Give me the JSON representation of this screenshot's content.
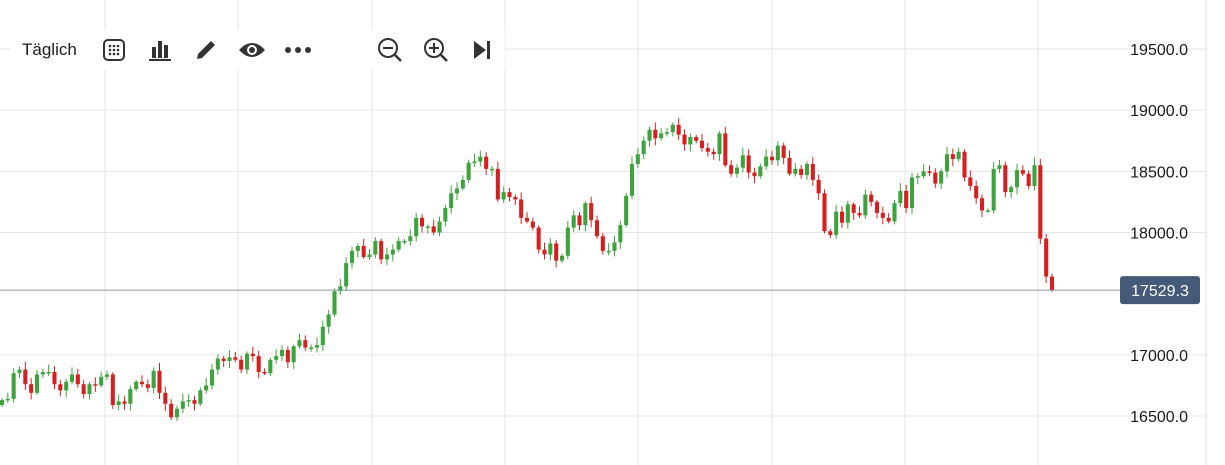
{
  "toolbar": {
    "timeframe_label": "Täglich",
    "buttons": [
      "calendar-icon",
      "bar-chart-icon",
      "pencil-icon",
      "eye-icon",
      "more-icon",
      "zoom-out-icon",
      "zoom-in-icon",
      "skip-to-end-icon"
    ]
  },
  "colors": {
    "up": "#3ea33e",
    "down": "#d42020",
    "grid": "#e6e6e6",
    "price_line": "#8a94a6",
    "price_tag": "#445a78"
  },
  "chart_data": {
    "type": "candlestick",
    "y_ticks": [
      "19500.0",
      "19000.0",
      "18500.0",
      "18000.0",
      "17000.0",
      "16500.0"
    ],
    "ylim": [
      16100,
      19900
    ],
    "grid": true,
    "last_price": 17529.3,
    "last_price_label": "17529.3",
    "closes": [
      16630,
      16640,
      16850,
      16880,
      16760,
      16690,
      16840,
      16860,
      16860,
      16760,
      16710,
      16780,
      16840,
      16760,
      16680,
      16760,
      16750,
      16820,
      16840,
      16590,
      16620,
      16600,
      16720,
      16780,
      16760,
      16730,
      16870,
      16690,
      16600,
      16490,
      16560,
      16620,
      16630,
      16600,
      16710,
      16750,
      16880,
      16970,
      16950,
      16980,
      16960,
      16880,
      17010,
      16990,
      16860,
      16850,
      16960,
      16990,
      17040,
      16940,
      17070,
      17120,
      17060,
      17060,
      17080,
      17230,
      17330,
      17520,
      17560,
      17750,
      17850,
      17890,
      17800,
      17820,
      17930,
      17780,
      17820,
      17860,
      17930,
      17930,
      17970,
      18120,
      18050,
      18050,
      18000,
      18090,
      18200,
      18320,
      18360,
      18430,
      18570,
      18580,
      18620,
      18520,
      18520,
      18270,
      18330,
      18290,
      18270,
      18120,
      18090,
      18040,
      17860,
      17820,
      17910,
      17770,
      17810,
      18040,
      18140,
      18060,
      18240,
      18100,
      17970,
      17850,
      17850,
      17920,
      18060,
      18300,
      18560,
      18640,
      18750,
      18840,
      18770,
      18810,
      18820,
      18880,
      18800,
      18720,
      18780,
      18750,
      18690,
      18660,
      18640,
      18810,
      18550,
      18480,
      18530,
      18630,
      18490,
      18460,
      18540,
      18620,
      18590,
      18710,
      18610,
      18480,
      18520,
      18470,
      18560,
      18430,
      18320,
      18010,
      17980,
      18170,
      18080,
      18230,
      18160,
      18140,
      18310,
      18250,
      18160,
      18120,
      18090,
      18240,
      18340,
      18200,
      18450,
      18460,
      18500,
      18490,
      18400,
      18500,
      18640,
      18600,
      18660,
      18450,
      18380,
      18280,
      18180,
      18180,
      18520,
      18550,
      18330,
      18370,
      18510,
      18480,
      18380,
      18550,
      17950,
      17640,
      17529.3
    ]
  }
}
